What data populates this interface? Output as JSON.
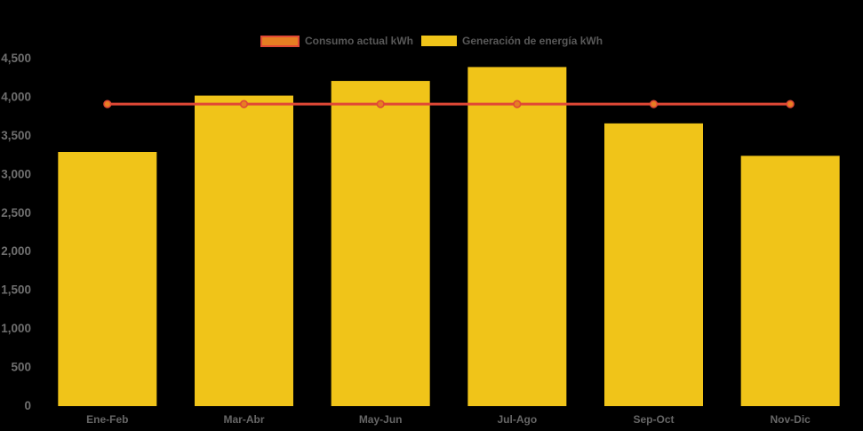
{
  "chart_data": {
    "type": "bar",
    "title": "",
    "xlabel": "",
    "ylabel": "",
    "categories": [
      "Ene-Feb",
      "Mar-Abr",
      "May-Jun",
      "Jul-Ago",
      "Sep-Oct",
      "Nov-Dic"
    ],
    "series": [
      {
        "name": "Consumo actual kWh",
        "type": "line",
        "values": [
          3900,
          3900,
          3900,
          3900,
          3900,
          3900
        ],
        "line_color": "#e04836",
        "marker_fill": "#e67e22",
        "marker_stroke": "#e04836"
      },
      {
        "name": "Generación de energía kWh",
        "type": "bar",
        "values": [
          3280,
          4010,
          4200,
          4380,
          3650,
          3230
        ],
        "color": "#f0c419"
      }
    ],
    "ylim": [
      0,
      4500
    ],
    "y_tick_values": [
      0,
      500,
      1000,
      1500,
      2000,
      2500,
      3000,
      3500,
      4000,
      4500
    ],
    "y_tick_labels": [
      "0",
      "500",
      "1,000",
      "1,500",
      "2,000",
      "2,500",
      "3,000",
      "3,500",
      "4,000",
      "4,500"
    ],
    "grid": false,
    "legend_position": "top",
    "background_color": "#000000",
    "y_axis_label_color": "#6f6f6f",
    "x_axis_label_color": "#666666",
    "legend_text_color": "#585858"
  }
}
